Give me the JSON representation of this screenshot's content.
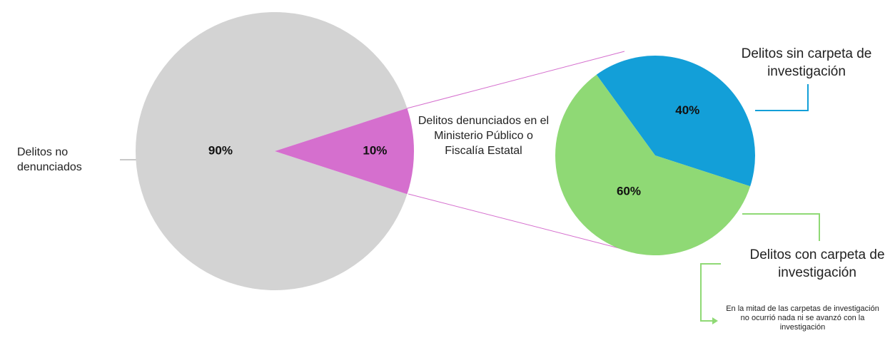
{
  "chart_data": [
    {
      "type": "pie",
      "categories": [
        "Delitos no denunciados",
        "Delitos denunciados en el Ministerio Público o Fiscalía Estatal"
      ],
      "values": [
        90,
        10
      ],
      "value_labels": [
        "90%",
        "10%"
      ],
      "colors": [
        "#d3d3d3",
        "#d56fce"
      ]
    },
    {
      "type": "pie",
      "categories": [
        "Delitos sin carpeta de investigación",
        "Delitos con carpeta de investigación"
      ],
      "values": [
        40,
        60
      ],
      "value_labels": [
        "40%",
        "60%"
      ],
      "colors": [
        "#139fd8",
        "#8fd975"
      ],
      "annotation": "En la mitad de las carpetas de investigación no ocurrió nada ni se avanzó con la investigación"
    }
  ]
}
